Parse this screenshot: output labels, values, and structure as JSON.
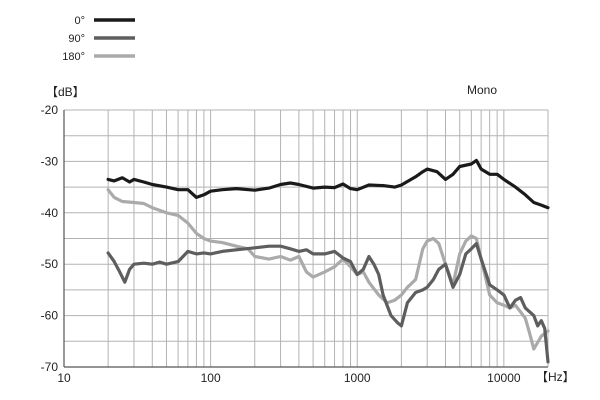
{
  "chart_data": {
    "type": "line",
    "xscale": "log",
    "xlim": [
      10,
      20000
    ],
    "ylim": [
      -70,
      -20
    ],
    "ylabel": "【dB】",
    "xlabel": "【Hz】",
    "annotation": "Mono",
    "x_ticks": [
      10,
      100,
      1000,
      10000
    ],
    "x_tick_labels": [
      "10",
      "100",
      "1000",
      "10000"
    ],
    "y_ticks": [
      -20,
      -30,
      -40,
      -50,
      -60,
      -70
    ],
    "y_tick_labels": [
      "-20",
      "-30",
      "-40",
      "-50",
      "-60",
      "-70"
    ],
    "grid": true,
    "legend_position": "top-left",
    "series": [
      {
        "name": "0°",
        "color": "#1a1a1a",
        "points": [
          [
            20,
            -33.5
          ],
          [
            22,
            -33.8
          ],
          [
            25,
            -33.2
          ],
          [
            28,
            -34
          ],
          [
            30,
            -33.5
          ],
          [
            35,
            -34
          ],
          [
            40,
            -34.5
          ],
          [
            50,
            -35
          ],
          [
            60,
            -35.5
          ],
          [
            70,
            -35.5
          ],
          [
            80,
            -37
          ],
          [
            90,
            -36.5
          ],
          [
            100,
            -35.8
          ],
          [
            120,
            -35.5
          ],
          [
            150,
            -35.3
          ],
          [
            200,
            -35.6
          ],
          [
            250,
            -35.2
          ],
          [
            300,
            -34.5
          ],
          [
            350,
            -34.2
          ],
          [
            400,
            -34.5
          ],
          [
            500,
            -35.2
          ],
          [
            600,
            -35
          ],
          [
            700,
            -35.1
          ],
          [
            800,
            -34.4
          ],
          [
            900,
            -35.3
          ],
          [
            1000,
            -35.5
          ],
          [
            1200,
            -34.6
          ],
          [
            1500,
            -34.7
          ],
          [
            1800,
            -35
          ],
          [
            2000,
            -34.6
          ],
          [
            2500,
            -33
          ],
          [
            2800,
            -32
          ],
          [
            3000,
            -31.5
          ],
          [
            3500,
            -32
          ],
          [
            4000,
            -33.5
          ],
          [
            4500,
            -32.5
          ],
          [
            5000,
            -31
          ],
          [
            6000,
            -30.5
          ],
          [
            6500,
            -29.8
          ],
          [
            7000,
            -31.5
          ],
          [
            8000,
            -32.5
          ],
          [
            9000,
            -32.5
          ],
          [
            10000,
            -33.5
          ],
          [
            12000,
            -35
          ],
          [
            14000,
            -36.5
          ],
          [
            16000,
            -38
          ],
          [
            18000,
            -38.5
          ],
          [
            20000,
            -39
          ]
        ]
      },
      {
        "name": "90°",
        "color": "#5e5e5e",
        "points": [
          [
            20,
            -47.8
          ],
          [
            22,
            -49.5
          ],
          [
            24,
            -51.5
          ],
          [
            26,
            -53.5
          ],
          [
            28,
            -51
          ],
          [
            30,
            -50
          ],
          [
            35,
            -49.8
          ],
          [
            40,
            -50
          ],
          [
            45,
            -49.6
          ],
          [
            50,
            -50
          ],
          [
            60,
            -49.5
          ],
          [
            70,
            -47.5
          ],
          [
            80,
            -48
          ],
          [
            90,
            -47.8
          ],
          [
            100,
            -48
          ],
          [
            120,
            -47.5
          ],
          [
            150,
            -47.2
          ],
          [
            200,
            -46.8
          ],
          [
            250,
            -46.5
          ],
          [
            300,
            -46.5
          ],
          [
            350,
            -47
          ],
          [
            400,
            -47.5
          ],
          [
            450,
            -47.2
          ],
          [
            500,
            -48
          ],
          [
            600,
            -48
          ],
          [
            700,
            -47.5
          ],
          [
            800,
            -48.8
          ],
          [
            900,
            -49.5
          ],
          [
            1000,
            -52
          ],
          [
            1100,
            -51
          ],
          [
            1200,
            -48.5
          ],
          [
            1300,
            -50
          ],
          [
            1400,
            -52
          ],
          [
            1500,
            -56
          ],
          [
            1700,
            -60
          ],
          [
            1900,
            -61.5
          ],
          [
            2000,
            -62
          ],
          [
            2200,
            -57.5
          ],
          [
            2500,
            -55.5
          ],
          [
            2800,
            -55
          ],
          [
            3000,
            -54.5
          ],
          [
            3300,
            -53
          ],
          [
            3600,
            -51
          ],
          [
            4000,
            -50
          ],
          [
            4500,
            -54.5
          ],
          [
            5000,
            -52
          ],
          [
            5500,
            -48
          ],
          [
            6000,
            -47
          ],
          [
            6500,
            -46
          ],
          [
            7000,
            -49
          ],
          [
            8000,
            -54
          ],
          [
            9000,
            -55
          ],
          [
            10000,
            -56
          ],
          [
            11000,
            -58.5
          ],
          [
            12000,
            -57
          ],
          [
            13000,
            -56.5
          ],
          [
            14000,
            -58.5
          ],
          [
            16000,
            -60
          ],
          [
            17000,
            -62
          ],
          [
            18000,
            -61
          ],
          [
            19000,
            -62.5
          ],
          [
            20000,
            -69
          ]
        ]
      },
      {
        "name": "180°",
        "color": "#aaaaaa",
        "points": [
          [
            20,
            -35.5
          ],
          [
            22,
            -37
          ],
          [
            25,
            -37.8
          ],
          [
            30,
            -38
          ],
          [
            35,
            -38.2
          ],
          [
            40,
            -39
          ],
          [
            50,
            -40
          ],
          [
            60,
            -40.5
          ],
          [
            70,
            -42
          ],
          [
            80,
            -44
          ],
          [
            90,
            -45
          ],
          [
            100,
            -45.5
          ],
          [
            120,
            -45.8
          ],
          [
            150,
            -46.5
          ],
          [
            180,
            -47
          ],
          [
            200,
            -48.5
          ],
          [
            250,
            -49
          ],
          [
            300,
            -48.5
          ],
          [
            350,
            -49.2
          ],
          [
            400,
            -48.5
          ],
          [
            450,
            -51.5
          ],
          [
            500,
            -52.5
          ],
          [
            600,
            -51.5
          ],
          [
            700,
            -50.5
          ],
          [
            800,
            -49
          ],
          [
            900,
            -50.5
          ],
          [
            1000,
            -52
          ],
          [
            1100,
            -51.5
          ],
          [
            1200,
            -53.5
          ],
          [
            1400,
            -56
          ],
          [
            1600,
            -57.5
          ],
          [
            1800,
            -57
          ],
          [
            2000,
            -56
          ],
          [
            2200,
            -54.5
          ],
          [
            2500,
            -53
          ],
          [
            2800,
            -47
          ],
          [
            3000,
            -45.5
          ],
          [
            3300,
            -45
          ],
          [
            3600,
            -46
          ],
          [
            4000,
            -50
          ],
          [
            4500,
            -54
          ],
          [
            5000,
            -48
          ],
          [
            5500,
            -45.5
          ],
          [
            6000,
            -44.5
          ],
          [
            6500,
            -45
          ],
          [
            7000,
            -49
          ],
          [
            8000,
            -56
          ],
          [
            9000,
            -57.5
          ],
          [
            10000,
            -58
          ],
          [
            11000,
            -58.5
          ],
          [
            12000,
            -58
          ],
          [
            14000,
            -60.5
          ],
          [
            15000,
            -63.5
          ],
          [
            16000,
            -66.5
          ],
          [
            18000,
            -64
          ],
          [
            20000,
            -63
          ]
        ]
      }
    ]
  }
}
